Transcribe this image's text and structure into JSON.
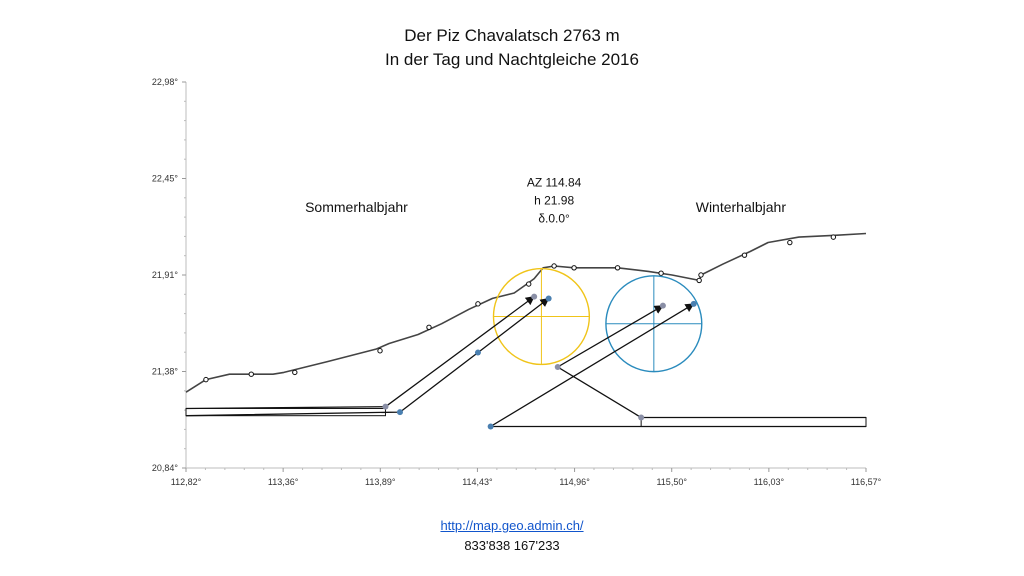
{
  "chart_data": {
    "type": "line",
    "title": [
      "Der Piz Chavalatsch 2763 m",
      "In der Tag und Nachtgleiche 2016"
    ],
    "xlim": [
      112.82,
      116.57
    ],
    "ylim": [
      20.84,
      22.98
    ],
    "x_ticks": [
      "112,82°",
      "113,36°",
      "113,89°",
      "114,43°",
      "114,96°",
      "115,50°",
      "116,03°",
      "116,57°"
    ],
    "y_ticks": [
      "20,84°",
      "21,38°",
      "21,91°",
      "22,45°",
      "22,98°"
    ],
    "grid": false,
    "horizon": [
      [
        112.82,
        21.26
      ],
      [
        112.93,
        21.33
      ],
      [
        113.06,
        21.36
      ],
      [
        113.18,
        21.36
      ],
      [
        113.3,
        21.36
      ],
      [
        113.36,
        21.37
      ],
      [
        113.6,
        21.43
      ],
      [
        113.87,
        21.5
      ],
      [
        113.94,
        21.53
      ],
      [
        114.1,
        21.58
      ],
      [
        114.23,
        21.64
      ],
      [
        114.38,
        21.72
      ],
      [
        114.51,
        21.78
      ],
      [
        114.63,
        21.81
      ],
      [
        114.7,
        21.86
      ],
      [
        114.74,
        21.89
      ],
      [
        114.79,
        21.95
      ],
      [
        114.85,
        21.96
      ],
      [
        114.96,
        21.95
      ],
      [
        115.1,
        21.95
      ],
      [
        115.2,
        21.95
      ],
      [
        115.37,
        21.93
      ],
      [
        115.5,
        21.91
      ],
      [
        115.65,
        21.88
      ],
      [
        115.66,
        21.91
      ],
      [
        115.78,
        21.97
      ],
      [
        115.93,
        22.04
      ],
      [
        116.03,
        22.09
      ],
      [
        116.2,
        22.12
      ],
      [
        116.4,
        22.13
      ],
      [
        116.57,
        22.14
      ]
    ],
    "horizon_markers": [
      [
        112.93,
        21.33
      ],
      [
        113.18,
        21.36
      ],
      [
        113.42,
        21.37
      ],
      [
        113.89,
        21.49
      ],
      [
        114.16,
        21.62
      ],
      [
        114.43,
        21.75
      ],
      [
        114.71,
        21.86
      ],
      [
        114.85,
        21.96
      ],
      [
        114.96,
        21.95
      ],
      [
        115.2,
        21.95
      ],
      [
        115.44,
        21.92
      ],
      [
        115.65,
        21.88
      ],
      [
        115.66,
        21.91
      ],
      [
        115.9,
        22.02
      ],
      [
        116.15,
        22.09
      ],
      [
        116.39,
        22.12
      ]
    ],
    "sun_summer": {
      "x": 114.78,
      "y": 21.68,
      "r_x": 0.26,
      "r_y": 0.27,
      "color": "#f0c419"
    },
    "sun_winter": {
      "x": 115.4,
      "y": 21.64,
      "r_x": 0.26,
      "r_y": 0.27,
      "color": "#2a8bbd"
    },
    "summer_paths": [
      {
        "points": [
          [
            112.82,
            21.17
          ],
          [
            113.92,
            21.18
          ],
          [
            114.74,
            21.79
          ]
        ],
        "dot_color": "#8a8fa6"
      },
      {
        "points": [
          [
            112.82,
            21.13
          ],
          [
            114.0,
            21.15
          ],
          [
            114.43,
            21.48
          ],
          [
            114.82,
            21.78
          ]
        ],
        "dot_color": "#4a7fb0"
      }
    ],
    "winter_paths": [
      {
        "points": [
          [
            116.57,
            21.12
          ],
          [
            115.33,
            21.12
          ],
          [
            114.87,
            21.4
          ],
          [
            115.45,
            21.74
          ]
        ],
        "dot_color": "#8a8fa6"
      },
      {
        "points": [
          [
            116.57,
            21.07
          ],
          [
            114.5,
            21.07
          ],
          [
            115.62,
            21.75
          ]
        ],
        "dot_color": "#4a7fb0"
      }
    ],
    "annotations": {
      "sommer": "Sommerhalbjahr",
      "winter": "Winterhalbjahr",
      "az": "AZ 114.84",
      "h": "h 21.98",
      "delta": "δ.0.0°"
    },
    "annotation_positions": {
      "sommer": [
        113.76,
        22.26
      ],
      "winter": [
        115.88,
        22.26
      ],
      "az": [
        114.85,
        22.4
      ],
      "h": [
        114.85,
        22.3
      ],
      "delta": [
        114.85,
        22.2
      ]
    }
  },
  "footer": {
    "link": "http://map.geo.admin.ch/",
    "coords": "833'838  167'233"
  }
}
